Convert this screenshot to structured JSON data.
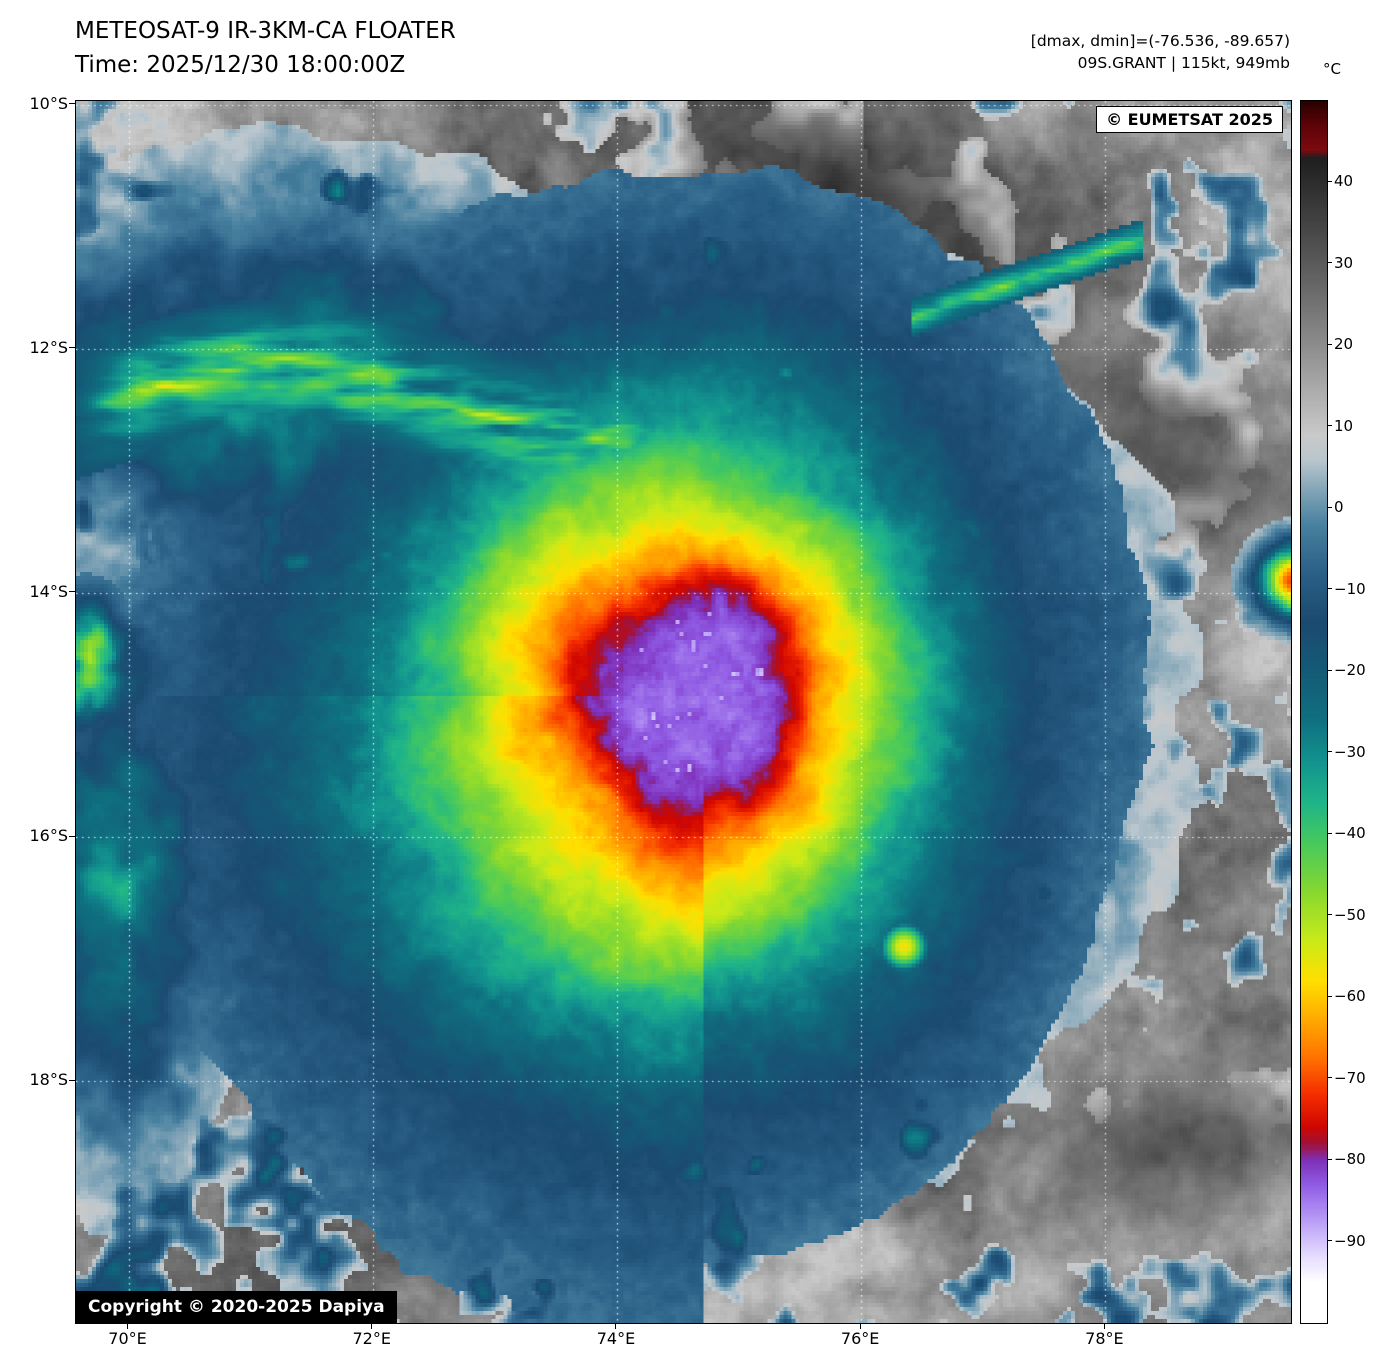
{
  "header": {
    "title_line1": "METEOSAT-9 IR-3KM-CA FLOATER",
    "title_line2": "Time: 2025/12/30 18:00:00Z",
    "info_line1": "[dmax, dmin]=(-76.536, -89.657)",
    "info_line2": "09S.GRANT | 115kt, 949mb"
  },
  "overlays": {
    "provider_badge": "© EUMETSAT 2025",
    "copyright": "Copyright © 2020-2025 Dapiya"
  },
  "axes": {
    "lat_ticks": [
      "10°S",
      "12°S",
      "14°S",
      "16°S",
      "18°S"
    ],
    "lat_values": [
      -10,
      -12,
      -14,
      -16,
      -18
    ],
    "lon_ticks": [
      "70°E",
      "72°E",
      "74°E",
      "76°E",
      "78°E"
    ],
    "lon_values": [
      70,
      72,
      74,
      76,
      78
    ],
    "lon_range": [
      69.57,
      79.52
    ],
    "lat_range": [
      -19.98,
      -9.97
    ]
  },
  "colorbar": {
    "label": "°C",
    "ticks": [
      40,
      30,
      20,
      10,
      0,
      -10,
      -20,
      -30,
      -40,
      -50,
      -60,
      -70,
      -80,
      -90
    ],
    "range": [
      50,
      -100
    ],
    "palette": [
      [
        50,
        "#2b0000"
      ],
      [
        47,
        "#5e0308"
      ],
      [
        44,
        "#7c0b10"
      ],
      [
        43,
        "#1f1f1f"
      ],
      [
        36,
        "#3f3f3f"
      ],
      [
        28,
        "#646464"
      ],
      [
        20,
        "#8d8d8d"
      ],
      [
        13,
        "#b4b4b4"
      ],
      [
        9,
        "#c9c9c9"
      ],
      [
        6,
        "#b9c6cd"
      ],
      [
        2,
        "#7fa3b6"
      ],
      [
        -2,
        "#48809f"
      ],
      [
        -8,
        "#2a5f86"
      ],
      [
        -14,
        "#1b4a70"
      ],
      [
        -20,
        "#145a77"
      ],
      [
        -26,
        "#0f707f"
      ],
      [
        -31,
        "#12928f"
      ],
      [
        -36,
        "#1fb489"
      ],
      [
        -41,
        "#46c95d"
      ],
      [
        -47,
        "#85d830"
      ],
      [
        -53,
        "#c9ea18"
      ],
      [
        -58,
        "#ffdf00"
      ],
      [
        -63,
        "#ffa800"
      ],
      [
        -68,
        "#ff6a00"
      ],
      [
        -72,
        "#f52d00"
      ],
      [
        -76,
        "#cf0600"
      ],
      [
        -78,
        "#a31133"
      ],
      [
        -80,
        "#7e2fb8"
      ],
      [
        -83,
        "#8f5ae3"
      ],
      [
        -86,
        "#ab87f1"
      ],
      [
        -89,
        "#c9b4fa"
      ],
      [
        -92,
        "#e6ddff"
      ],
      [
        -95,
        "#ffffff"
      ],
      [
        -100,
        "#ffffff"
      ]
    ]
  },
  "chart_data": {
    "type": "heatmap",
    "title": "METEOSAT-9 IR-3KM-CA FLOATER",
    "time_utc": "2025/12/30 18:00:00Z",
    "x_axis": "longitude (°E)",
    "y_axis": "latitude (°S)",
    "colorbar_unit": "°C",
    "colorbar_ticks": [
      40,
      30,
      20,
      10,
      0,
      -10,
      -20,
      -30,
      -40,
      -50,
      -60,
      -70,
      -80,
      -90
    ],
    "storm": {
      "id": "09S.GRANT",
      "intensity_kt": 115,
      "min_pressure_mb": 949,
      "cloud_top_dmax_c": -76.536,
      "cloud_top_dmin_c": -89.657,
      "approx_center": {
        "lon_e": 74.7,
        "lat_s": 14.9
      }
    }
  }
}
